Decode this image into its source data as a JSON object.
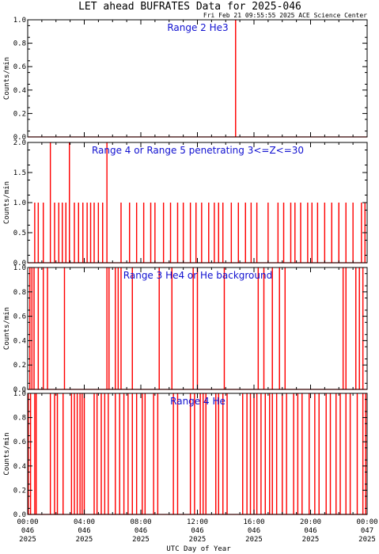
{
  "title": "LET ahead BUFRATES Data for 2025-046",
  "timestamp": "Fri Feb 21 09:55:55 2025 ACE Science Center",
  "xlabel": "UTC Day of Year",
  "colors": {
    "series": "#ff0000",
    "label": "#1010d0",
    "axis": "#000000"
  },
  "x_ticks": [
    {
      "hours": 0,
      "time": "00:00",
      "doy": "046",
      "year": "2025"
    },
    {
      "hours": 4,
      "time": "04:00",
      "doy": "046",
      "year": "2025"
    },
    {
      "hours": 8,
      "time": "08:00",
      "doy": "046",
      "year": "2025"
    },
    {
      "hours": 12,
      "time": "12:00",
      "doy": "046",
      "year": "2025"
    },
    {
      "hours": 16,
      "time": "16:00",
      "doy": "046",
      "year": "2025"
    },
    {
      "hours": 20,
      "time": "20:00",
      "doy": "046",
      "year": "2025"
    },
    {
      "hours": 24,
      "time": "00:00",
      "doy": "047",
      "year": "2025"
    }
  ],
  "chart_data": [
    {
      "type": "line",
      "label": "Range 2 He3",
      "ylabel": "Counts/min",
      "ylim": [
        0,
        1.0
      ],
      "yticks": [
        "0.0",
        "0.2",
        "0.4",
        "0.6",
        "0.8",
        "1.0"
      ],
      "spikes": [
        {
          "x": 14.7,
          "y": 1.0
        }
      ]
    },
    {
      "type": "line",
      "label": "Range 4 or Range 5 penetrating 3<=Z<=30",
      "ylabel": "Counts/min",
      "ylim": [
        0,
        2.0
      ],
      "yticks": [
        "0.0",
        "0.5",
        "1.0",
        "1.5",
        "2.0"
      ],
      "spikes": [
        {
          "x": 0.5,
          "y": 1
        },
        {
          "x": 0.75,
          "y": 1
        },
        {
          "x": 1.1,
          "y": 1
        },
        {
          "x": 1.6,
          "y": 2
        },
        {
          "x": 1.9,
          "y": 1
        },
        {
          "x": 2.2,
          "y": 1
        },
        {
          "x": 2.45,
          "y": 1
        },
        {
          "x": 2.7,
          "y": 1
        },
        {
          "x": 2.95,
          "y": 2
        },
        {
          "x": 3.3,
          "y": 1
        },
        {
          "x": 3.6,
          "y": 1
        },
        {
          "x": 3.9,
          "y": 1
        },
        {
          "x": 4.2,
          "y": 1
        },
        {
          "x": 4.45,
          "y": 1
        },
        {
          "x": 4.7,
          "y": 1
        },
        {
          "x": 5.0,
          "y": 1
        },
        {
          "x": 5.3,
          "y": 1
        },
        {
          "x": 5.6,
          "y": 2
        },
        {
          "x": 6.6,
          "y": 1
        },
        {
          "x": 7.2,
          "y": 1
        },
        {
          "x": 7.7,
          "y": 1
        },
        {
          "x": 8.2,
          "y": 1
        },
        {
          "x": 8.7,
          "y": 1
        },
        {
          "x": 9.0,
          "y": 1
        },
        {
          "x": 9.6,
          "y": 1
        },
        {
          "x": 10.1,
          "y": 1
        },
        {
          "x": 10.6,
          "y": 1
        },
        {
          "x": 11.0,
          "y": 1
        },
        {
          "x": 11.5,
          "y": 1
        },
        {
          "x": 11.9,
          "y": 1
        },
        {
          "x": 12.3,
          "y": 1
        },
        {
          "x": 12.8,
          "y": 1
        },
        {
          "x": 13.2,
          "y": 1
        },
        {
          "x": 13.5,
          "y": 1
        },
        {
          "x": 13.8,
          "y": 1
        },
        {
          "x": 14.4,
          "y": 1
        },
        {
          "x": 14.9,
          "y": 1
        },
        {
          "x": 15.4,
          "y": 1
        },
        {
          "x": 15.8,
          "y": 1
        },
        {
          "x": 16.2,
          "y": 1
        },
        {
          "x": 17.0,
          "y": 1
        },
        {
          "x": 17.7,
          "y": 1
        },
        {
          "x": 18.1,
          "y": 1
        },
        {
          "x": 18.6,
          "y": 1
        },
        {
          "x": 18.9,
          "y": 1
        },
        {
          "x": 19.3,
          "y": 1
        },
        {
          "x": 19.8,
          "y": 1
        },
        {
          "x": 20.1,
          "y": 1
        },
        {
          "x": 20.5,
          "y": 1
        },
        {
          "x": 21.0,
          "y": 1
        },
        {
          "x": 21.5,
          "y": 1
        },
        {
          "x": 22.0,
          "y": 1
        },
        {
          "x": 22.5,
          "y": 1
        },
        {
          "x": 23.0,
          "y": 1
        },
        {
          "x": 23.6,
          "y": 1
        },
        {
          "x": 23.85,
          "y": 1
        }
      ]
    },
    {
      "type": "line",
      "label": "Range 3 He4 or He background",
      "ylabel": "Counts/min",
      "ylim": [
        0,
        1.0
      ],
      "yticks": [
        "0.0",
        "0.2",
        "0.4",
        "0.6",
        "0.8",
        "1.0"
      ],
      "spikes": [
        {
          "x": 0.15,
          "y": 1
        },
        {
          "x": 0.3,
          "y": 1
        },
        {
          "x": 0.45,
          "y": 1
        },
        {
          "x": 0.75,
          "y": 1
        },
        {
          "x": 1.1,
          "y": 1
        },
        {
          "x": 1.4,
          "y": 1
        },
        {
          "x": 2.6,
          "y": 1
        },
        {
          "x": 5.6,
          "y": 1
        },
        {
          "x": 5.75,
          "y": 1
        },
        {
          "x": 6.2,
          "y": 1
        },
        {
          "x": 6.4,
          "y": 1
        },
        {
          "x": 6.6,
          "y": 1
        },
        {
          "x": 7.4,
          "y": 1
        },
        {
          "x": 9.3,
          "y": 1
        },
        {
          "x": 10.2,
          "y": 1
        },
        {
          "x": 11.7,
          "y": 1
        },
        {
          "x": 12.0,
          "y": 1
        },
        {
          "x": 13.9,
          "y": 1
        },
        {
          "x": 16.3,
          "y": 1
        },
        {
          "x": 16.7,
          "y": 1
        },
        {
          "x": 17.3,
          "y": 1
        },
        {
          "x": 17.8,
          "y": 1
        },
        {
          "x": 18.2,
          "y": 1
        },
        {
          "x": 22.3,
          "y": 1
        },
        {
          "x": 22.5,
          "y": 1
        },
        {
          "x": 23.2,
          "y": 1
        },
        {
          "x": 23.45,
          "y": 1
        },
        {
          "x": 23.7,
          "y": 1
        }
      ]
    },
    {
      "type": "line",
      "label": "Range 4 He",
      "ylabel": "Counts/min",
      "ylim": [
        0,
        1.0
      ],
      "yticks": [
        "0.0",
        "0.2",
        "0.4",
        "0.6",
        "0.8",
        "1.0"
      ],
      "spikes": [
        {
          "x": 0.05,
          "y": 1
        },
        {
          "x": 0.2,
          "y": 1
        },
        {
          "x": 0.5,
          "y": 1
        },
        {
          "x": 0.6,
          "y": 1
        },
        {
          "x": 1.6,
          "y": 1
        },
        {
          "x": 1.9,
          "y": 1
        },
        {
          "x": 2.1,
          "y": 1
        },
        {
          "x": 2.5,
          "y": 1
        },
        {
          "x": 3.1,
          "y": 1
        },
        {
          "x": 3.3,
          "y": 1
        },
        {
          "x": 3.5,
          "y": 1
        },
        {
          "x": 3.7,
          "y": 1
        },
        {
          "x": 3.85,
          "y": 1
        },
        {
          "x": 4.0,
          "y": 1
        },
        {
          "x": 4.7,
          "y": 1
        },
        {
          "x": 4.9,
          "y": 1
        },
        {
          "x": 5.2,
          "y": 1
        },
        {
          "x": 5.45,
          "y": 1
        },
        {
          "x": 5.7,
          "y": 1
        },
        {
          "x": 6.2,
          "y": 1
        },
        {
          "x": 6.5,
          "y": 1
        },
        {
          "x": 6.8,
          "y": 1
        },
        {
          "x": 7.1,
          "y": 1
        },
        {
          "x": 7.4,
          "y": 1
        },
        {
          "x": 7.7,
          "y": 1
        },
        {
          "x": 8.1,
          "y": 1
        },
        {
          "x": 8.3,
          "y": 1
        },
        {
          "x": 8.9,
          "y": 1
        },
        {
          "x": 9.2,
          "y": 1
        },
        {
          "x": 10.3,
          "y": 1
        },
        {
          "x": 10.6,
          "y": 1
        },
        {
          "x": 11.5,
          "y": 1
        },
        {
          "x": 11.8,
          "y": 1
        },
        {
          "x": 12.2,
          "y": 1
        },
        {
          "x": 12.4,
          "y": 1
        },
        {
          "x": 12.6,
          "y": 1
        },
        {
          "x": 13.3,
          "y": 1
        },
        {
          "x": 13.5,
          "y": 1
        },
        {
          "x": 13.8,
          "y": 1
        },
        {
          "x": 14.1,
          "y": 1
        },
        {
          "x": 15.2,
          "y": 1
        },
        {
          "x": 15.5,
          "y": 1
        },
        {
          "x": 15.75,
          "y": 1
        },
        {
          "x": 16.0,
          "y": 1
        },
        {
          "x": 16.2,
          "y": 1
        },
        {
          "x": 16.5,
          "y": 1
        },
        {
          "x": 16.8,
          "y": 1
        },
        {
          "x": 17.1,
          "y": 1
        },
        {
          "x": 17.3,
          "y": 1
        },
        {
          "x": 17.6,
          "y": 1
        },
        {
          "x": 18.0,
          "y": 1
        },
        {
          "x": 18.3,
          "y": 1
        },
        {
          "x": 18.8,
          "y": 1
        },
        {
          "x": 19.1,
          "y": 1
        },
        {
          "x": 19.4,
          "y": 1
        },
        {
          "x": 19.9,
          "y": 1
        },
        {
          "x": 20.3,
          "y": 1
        },
        {
          "x": 20.6,
          "y": 1
        },
        {
          "x": 21.1,
          "y": 1
        },
        {
          "x": 21.4,
          "y": 1
        },
        {
          "x": 21.8,
          "y": 1
        },
        {
          "x": 22.1,
          "y": 1
        },
        {
          "x": 22.5,
          "y": 1
        },
        {
          "x": 22.8,
          "y": 1
        },
        {
          "x": 23.3,
          "y": 1
        },
        {
          "x": 23.7,
          "y": 1
        },
        {
          "x": 23.9,
          "y": 1
        }
      ]
    }
  ]
}
